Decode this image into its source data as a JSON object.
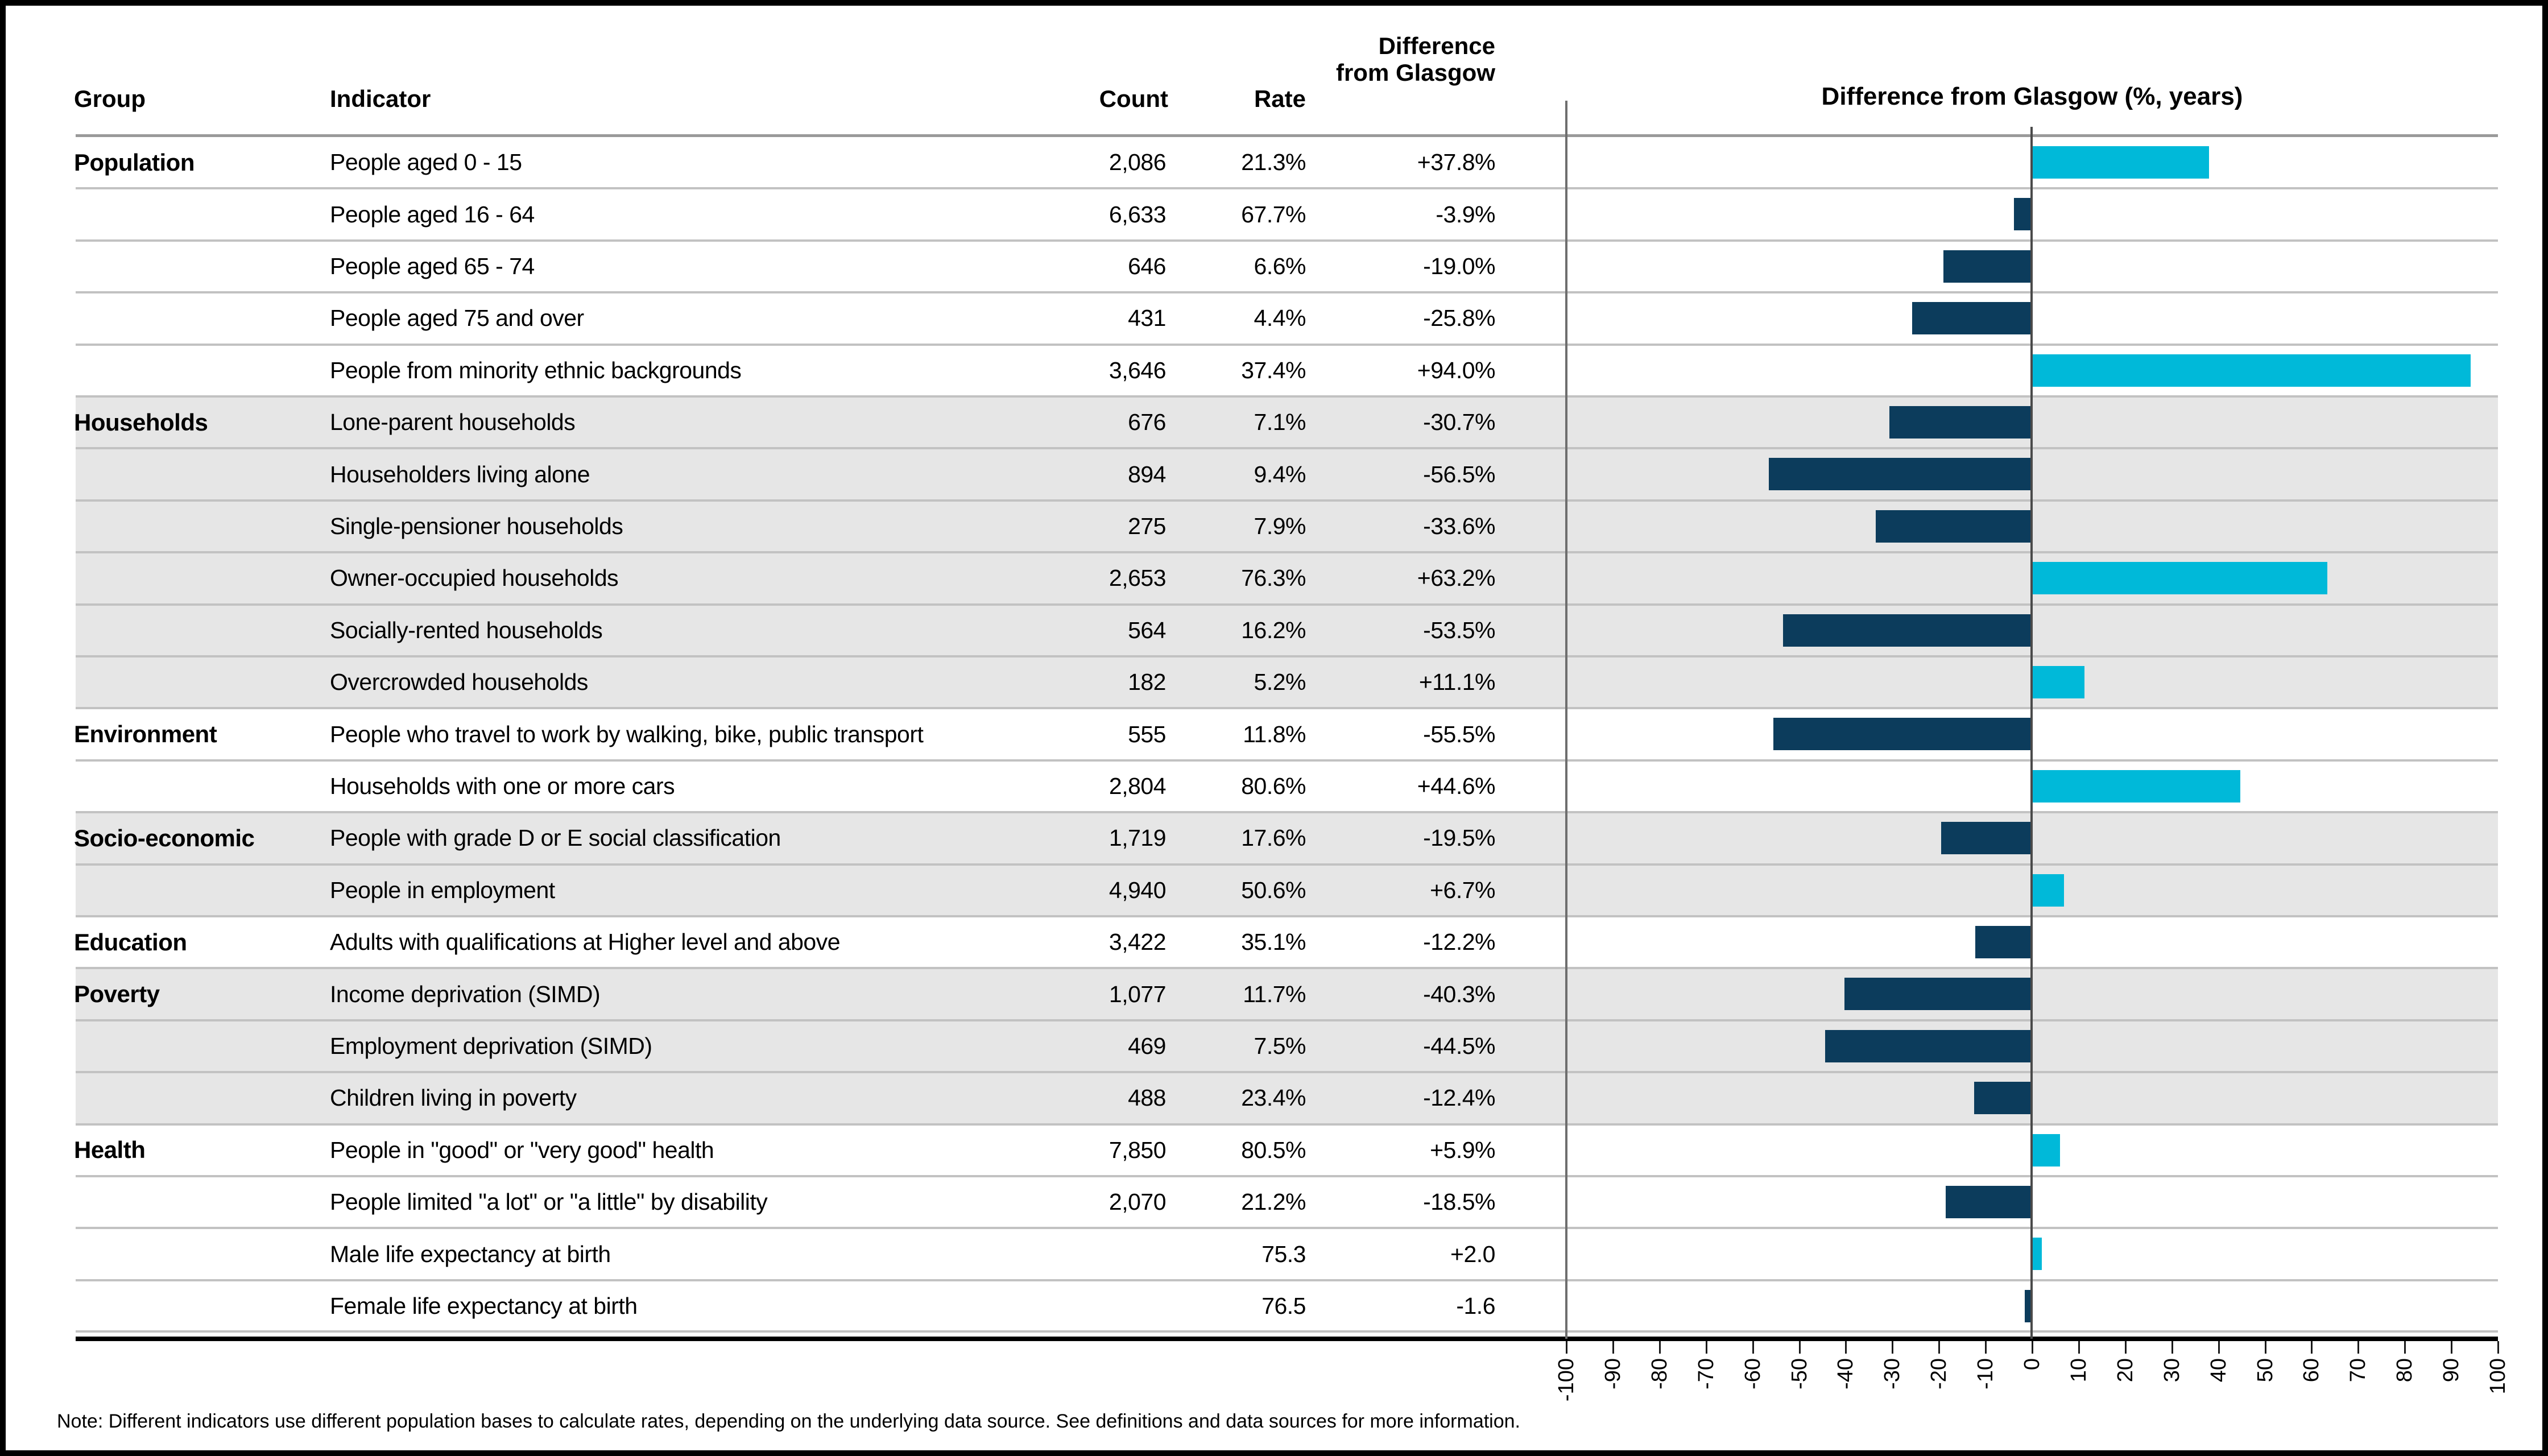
{
  "header": {
    "group": "Group",
    "indicator": "Indicator",
    "count": "Count",
    "rate": "Rate",
    "difference": "Difference from Glasgow",
    "chart_title": "Difference from Glasgow (%, years)"
  },
  "note": "Note: Different indicators use different population bases to calculate rates, depending on the underlying data source. See definitions and data sources for more information.",
  "table": {
    "rows": [
      {
        "group": "Population",
        "indicator": "People aged 0 - 15",
        "count": "2,086",
        "rate": "21.3%",
        "difference": "+37.8%",
        "value": 37.8,
        "band": "white"
      },
      {
        "group": "",
        "indicator": "People aged 16 - 64",
        "count": "6,633",
        "rate": "67.7%",
        "difference": "-3.9%",
        "value": -3.9,
        "band": "white"
      },
      {
        "group": "",
        "indicator": "People aged 65 - 74",
        "count": "646",
        "rate": "6.6%",
        "difference": "-19.0%",
        "value": -19.0,
        "band": "white"
      },
      {
        "group": "",
        "indicator": "People aged 75 and over",
        "count": "431",
        "rate": "4.4%",
        "difference": "-25.8%",
        "value": -25.8,
        "band": "white"
      },
      {
        "group": "",
        "indicator": "People from minority ethnic backgrounds",
        "count": "3,646",
        "rate": "37.4%",
        "difference": "+94.0%",
        "value": 94.0,
        "band": "white"
      },
      {
        "group": "Households",
        "indicator": "Lone-parent households",
        "count": "676",
        "rate": "7.1%",
        "difference": "-30.7%",
        "value": -30.7,
        "band": "gray"
      },
      {
        "group": "",
        "indicator": "Householders living alone",
        "count": "894",
        "rate": "9.4%",
        "difference": "-56.5%",
        "value": -56.5,
        "band": "gray"
      },
      {
        "group": "",
        "indicator": "Single-pensioner households",
        "count": "275",
        "rate": "7.9%",
        "difference": "-33.6%",
        "value": -33.6,
        "band": "gray"
      },
      {
        "group": "",
        "indicator": "Owner-occupied households",
        "count": "2,653",
        "rate": "76.3%",
        "difference": "+63.2%",
        "value": 63.2,
        "band": "gray"
      },
      {
        "group": "",
        "indicator": "Socially-rented households",
        "count": "564",
        "rate": "16.2%",
        "difference": "-53.5%",
        "value": -53.5,
        "band": "gray"
      },
      {
        "group": "",
        "indicator": "Overcrowded households",
        "count": "182",
        "rate": "5.2%",
        "difference": "+11.1%",
        "value": 11.1,
        "band": "gray"
      },
      {
        "group": "Environment",
        "indicator": "People who travel to work by walking, bike, public transport",
        "count": "555",
        "rate": "11.8%",
        "difference": "-55.5%",
        "value": -55.5,
        "band": "white"
      },
      {
        "group": "",
        "indicator": "Households with one or more cars",
        "count": "2,804",
        "rate": "80.6%",
        "difference": "+44.6%",
        "value": 44.6,
        "band": "white"
      },
      {
        "group": "Socio-economic",
        "indicator": "People with grade D or E social classification",
        "count": "1,719",
        "rate": "17.6%",
        "difference": "-19.5%",
        "value": -19.5,
        "band": "gray"
      },
      {
        "group": "",
        "indicator": "People in employment",
        "count": "4,940",
        "rate": "50.6%",
        "difference": "+6.7%",
        "value": 6.7,
        "band": "gray"
      },
      {
        "group": "Education",
        "indicator": "Adults with qualifications at Higher level and above",
        "count": "3,422",
        "rate": "35.1%",
        "difference": "-12.2%",
        "value": -12.2,
        "band": "white"
      },
      {
        "group": "Poverty",
        "indicator": "Income deprivation (SIMD)",
        "count": "1,077",
        "rate": "11.7%",
        "difference": "-40.3%",
        "value": -40.3,
        "band": "gray"
      },
      {
        "group": "",
        "indicator": "Employment deprivation (SIMD)",
        "count": "469",
        "rate": "7.5%",
        "difference": "-44.5%",
        "value": -44.5,
        "band": "gray"
      },
      {
        "group": "",
        "indicator": "Children living in poverty",
        "count": "488",
        "rate": "23.4%",
        "difference": "-12.4%",
        "value": -12.4,
        "band": "gray"
      },
      {
        "group": "Health",
        "indicator": "People in \"good\" or \"very good\" health",
        "count": "7,850",
        "rate": "80.5%",
        "difference": "+5.9%",
        "value": 5.9,
        "band": "white"
      },
      {
        "group": "",
        "indicator": "People limited \"a lot\" or \"a little\" by disability",
        "count": "2,070",
        "rate": "21.2%",
        "difference": "-18.5%",
        "value": -18.5,
        "band": "white"
      },
      {
        "group": "",
        "indicator": "Male life expectancy at birth",
        "count": "",
        "rate": "75.3",
        "difference": "+2.0",
        "value": 2.0,
        "band": "white"
      },
      {
        "group": "",
        "indicator": "Female life expectancy at birth",
        "count": "",
        "rate": "76.5",
        "difference": "-1.6",
        "value": -1.6,
        "band": "white"
      }
    ]
  },
  "chart_data": {
    "type": "bar",
    "orientation": "horizontal",
    "title": "Difference from Glasgow (%, years)",
    "xlim": [
      -100,
      100
    ],
    "tick_step": 10,
    "tick_values": [
      -100,
      -90,
      -80,
      -70,
      -60,
      -50,
      -40,
      -30,
      -20,
      -10,
      0,
      10,
      20,
      30,
      40,
      50,
      60,
      70,
      80,
      90,
      100
    ],
    "grid": false,
    "legend": "none",
    "categories": [
      "People aged 0 - 15",
      "People aged 16 - 64",
      "People aged 65 - 74",
      "People aged 75 and over",
      "People from minority ethnic backgrounds",
      "Lone-parent households",
      "Householders living alone",
      "Single-pensioner households",
      "Owner-occupied households",
      "Socially-rented households",
      "Overcrowded households",
      "People who travel to work by walking, bike, public transport",
      "Households with one or more cars",
      "People with grade D or E social classification",
      "People in employment",
      "Adults with qualifications at Higher level and above",
      "Income deprivation (SIMD)",
      "Employment deprivation (SIMD)",
      "Children living in poverty",
      "People in \"good\" or \"very good\" health",
      "People limited \"a lot\" or \"a little\" by disability",
      "Male life expectancy at birth",
      "Female life expectancy at birth"
    ],
    "values": [
      37.8,
      -3.9,
      -19.0,
      -25.8,
      94.0,
      -30.7,
      -56.5,
      -33.6,
      63.2,
      -53.5,
      11.1,
      -55.5,
      44.6,
      -19.5,
      6.7,
      -12.2,
      -40.3,
      -44.5,
      -12.4,
      5.9,
      -18.5,
      2.0,
      -1.6
    ],
    "positive_color": "#00b9d9",
    "negative_color": "#0c3c5c",
    "band_gray": "#e6e6e6",
    "band_white": "#ffffff"
  }
}
